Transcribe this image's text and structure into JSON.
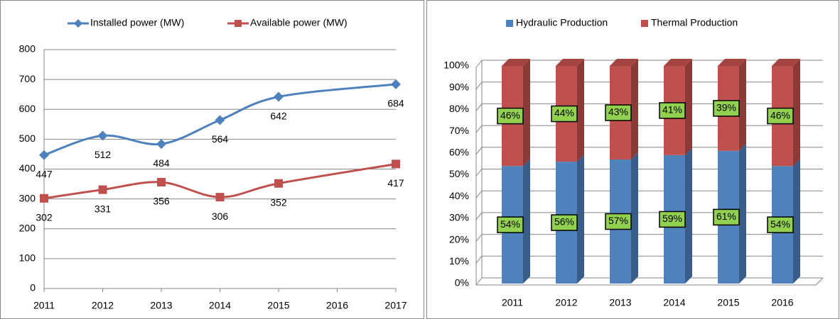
{
  "chart_data": [
    {
      "type": "line",
      "x": [
        2011,
        2012,
        2013,
        2014,
        2015,
        2017
      ],
      "series": [
        {
          "name": "Installed power (MW)",
          "color": "#4f81bd",
          "marker": "diamond",
          "values": [
            447,
            512,
            484,
            564,
            642,
            684
          ]
        },
        {
          "name": "Available power (MW)",
          "color": "#c0504d",
          "marker": "square",
          "values": [
            302,
            331,
            356,
            306,
            352,
            417
          ]
        }
      ],
      "xlim": [
        2011,
        2017
      ],
      "xticks": [
        2011,
        2012,
        2013,
        2014,
        2015,
        2016,
        2017
      ],
      "ylim": [
        0,
        800
      ],
      "yticks": [
        0,
        100,
        200,
        300,
        400,
        500,
        600,
        700,
        800
      ],
      "grid": true,
      "legend": "top"
    },
    {
      "type": "stacked-bar-3d",
      "categories": [
        "2011",
        "2012",
        "2013",
        "2014",
        "2015",
        "2016"
      ],
      "series": [
        {
          "name": "Hydraulic Production",
          "color": "#4f81bd",
          "values": [
            54,
            56,
            57,
            59,
            61,
            54
          ],
          "value_labels": [
            "54%",
            "56%",
            "57%",
            "59%",
            "61%",
            "54%"
          ]
        },
        {
          "name": "Thermal Production",
          "color": "#c0504d",
          "values": [
            46,
            44,
            43,
            41,
            39,
            46
          ],
          "value_labels": [
            "46%",
            "44%",
            "43%",
            "41%",
            "39%",
            "46%"
          ]
        }
      ],
      "ylim": [
        0,
        100
      ],
      "yticks": [
        {
          "value": 0,
          "label": "0%"
        },
        {
          "value": 10,
          "label": "10%"
        },
        {
          "value": 20,
          "label": "20%"
        },
        {
          "value": 30,
          "label": "30%"
        },
        {
          "value": 40,
          "label": "40%"
        },
        {
          "value": 50,
          "label": "50%"
        },
        {
          "value": 60,
          "label": "60%"
        },
        {
          "value": 70,
          "label": "70%"
        },
        {
          "value": 80,
          "label": "80%"
        },
        {
          "value": 90,
          "label": "90%"
        },
        {
          "value": 100,
          "label": "100%"
        }
      ],
      "grid": true,
      "legend": "top",
      "label_color": "#92d050"
    }
  ]
}
